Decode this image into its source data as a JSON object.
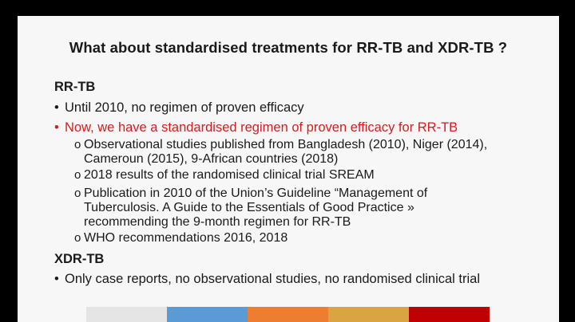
{
  "slide": {
    "title": "What about standardised treatments for RR-TB and XDR-TB ?",
    "section1": {
      "heading": "RR-TB",
      "bullet_mark": "•",
      "bullet1": "Until 2010, no regimen of proven efficacy",
      "bullet2": "Now, we have a standardised regimen of proven efficacy for RR-TB",
      "sub_mark": "o",
      "sub_items": [
        "Observational studies published from Bangladesh (2010), Niger (2014),\nCameroun (2015), 9-African countries (2018)",
        "2018 results of the randomised clinical trial SREAM",
        "Publication in 2010 of the Union’s Guideline “Management of\nTuberculosis. A Guide to the Essentials of Good Practice »\nrecommending the 9-month regimen for RR-TB",
        "WHO recommendations 2016, 2018"
      ]
    },
    "section2": {
      "heading": "XDR-TB",
      "bullet1": "Only case reports, no observational studies, no randomised clinical trial"
    }
  },
  "colors": {
    "highlight_red": "#d11e1e",
    "bar_colors": [
      "#e5e5e5",
      "#5b9bd5",
      "#ed7d31",
      "#d9a441",
      "#c00000"
    ]
  }
}
